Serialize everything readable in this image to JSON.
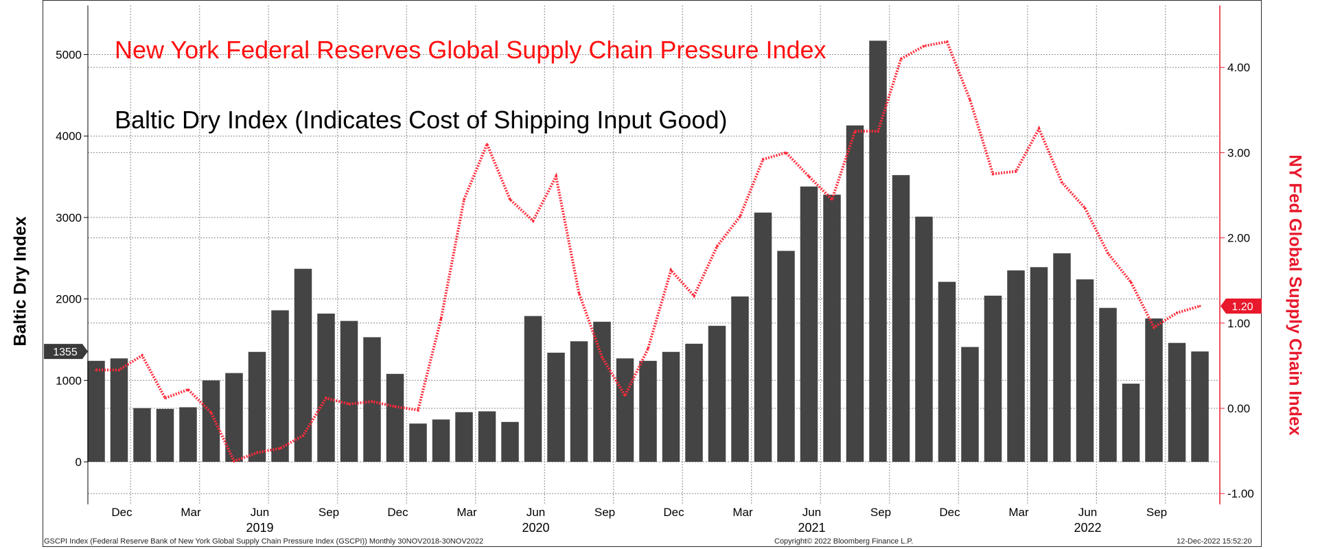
{
  "titles": {
    "gscpi": "New York Federal Reserves Global Supply Chain Pressure Index",
    "bdi": "Baltic Dry Index (Indicates Cost of Shipping Input Good)"
  },
  "footer": {
    "left": "GSCPI Index (Federal Reserve Bank of New York Global Supply Chain Pressure Index (GSCPI)) Monthly 30NOV2018-30NOV2022",
    "center": "Copyright© 2022 Bloomberg Finance L.P.",
    "right": "12-Dec-2022 15:52:20"
  },
  "chart_data": {
    "type": "bar+line",
    "categories": [
      "Nov 2018",
      "Dec 2018",
      "Jan 2019",
      "Feb 2019",
      "Mar 2019",
      "Apr 2019",
      "May 2019",
      "Jun 2019",
      "Jul 2019",
      "Aug 2019",
      "Sep 2019",
      "Oct 2019",
      "Nov 2019",
      "Dec 2019",
      "Jan 2020",
      "Feb 2020",
      "Mar 2020",
      "Apr 2020",
      "May 2020",
      "Jun 2020",
      "Jul 2020",
      "Aug 2020",
      "Sep 2020",
      "Oct 2020",
      "Nov 2020",
      "Dec 2020",
      "Jan 2021",
      "Feb 2021",
      "Mar 2021",
      "Apr 2021",
      "May 2021",
      "Jun 2021",
      "Jul 2021",
      "Aug 2021",
      "Sep 2021",
      "Oct 2021",
      "Nov 2021",
      "Dec 2021",
      "Jan 2022",
      "Feb 2022",
      "Mar 2022",
      "Apr 2022",
      "May 2022",
      "Jun 2022",
      "Jul 2022",
      "Aug 2022",
      "Sep 2022",
      "Oct 2022",
      "Nov 2022"
    ],
    "series": [
      {
        "name": "Baltic Dry Index",
        "axis": "left",
        "color": "#444444",
        "values": [
          1240,
          1270,
          660,
          650,
          670,
          1000,
          1090,
          1350,
          1860,
          2370,
          1820,
          1730,
          1530,
          1080,
          470,
          520,
          610,
          620,
          490,
          1790,
          1340,
          1480,
          1720,
          1270,
          1240,
          1350,
          1450,
          1670,
          2030,
          3060,
          2590,
          3380,
          3280,
          4130,
          5170,
          3520,
          3010,
          2210,
          1410,
          2040,
          2350,
          2390,
          2560,
          2240,
          1890,
          960,
          1760,
          1460,
          1355
        ]
      },
      {
        "name": "NY Fed Global Supply Chain Index",
        "axis": "right",
        "color": "#ff2a3a",
        "values": [
          0.45,
          0.45,
          0.62,
          0.12,
          0.22,
          -0.05,
          -0.62,
          -0.52,
          -0.47,
          -0.32,
          0.12,
          0.05,
          0.08,
          0.02,
          -0.02,
          1.05,
          2.45,
          3.1,
          2.45,
          2.2,
          2.72,
          1.35,
          0.6,
          0.15,
          0.7,
          1.62,
          1.32,
          1.9,
          2.25,
          2.92,
          3.0,
          2.72,
          2.45,
          3.25,
          3.25,
          4.1,
          4.25,
          4.3,
          3.62,
          2.75,
          2.78,
          3.28,
          2.65,
          2.35,
          1.82,
          1.48,
          0.95,
          1.12,
          1.2
        ]
      }
    ],
    "left_axis": {
      "label": "Baltic Dry Index",
      "ticks": [
        0,
        1000,
        2000,
        3000,
        4000,
        5000
      ],
      "tick_labels": [
        "0",
        "1000",
        "2000",
        "3000",
        "4000",
        "5000"
      ]
    },
    "right_axis": {
      "label": "NY Fed Global Supply Chain Index",
      "ticks": [
        -1,
        0,
        1,
        2,
        3,
        4
      ],
      "tick_labels": [
        "-1.00",
        "0.00",
        "1.00",
        "2.00",
        "3.00",
        "4.00"
      ]
    },
    "x_ticks": [
      {
        "i": 1,
        "label": "Dec"
      },
      {
        "i": 4,
        "label": "Mar"
      },
      {
        "i": 7,
        "label": "Jun"
      },
      {
        "i": 10,
        "label": "Sep"
      },
      {
        "i": 13,
        "label": "Dec"
      },
      {
        "i": 16,
        "label": "Mar"
      },
      {
        "i": 19,
        "label": "Jun"
      },
      {
        "i": 22,
        "label": "Sep"
      },
      {
        "i": 25,
        "label": "Dec"
      },
      {
        "i": 28,
        "label": "Mar"
      },
      {
        "i": 31,
        "label": "Jun"
      },
      {
        "i": 34,
        "label": "Sep"
      },
      {
        "i": 37,
        "label": "Dec"
      },
      {
        "i": 40,
        "label": "Mar"
      },
      {
        "i": 43,
        "label": "Jun"
      },
      {
        "i": 46,
        "label": "Sep"
      }
    ],
    "year_labels": [
      {
        "i": 7,
        "label": "2019"
      },
      {
        "i": 19,
        "label": "2020"
      },
      {
        "i": 31,
        "label": "2021"
      },
      {
        "i": 43,
        "label": "2022"
      }
    ],
    "last_value_labels": {
      "left": "1355",
      "right": "1.20"
    },
    "grid": true
  }
}
